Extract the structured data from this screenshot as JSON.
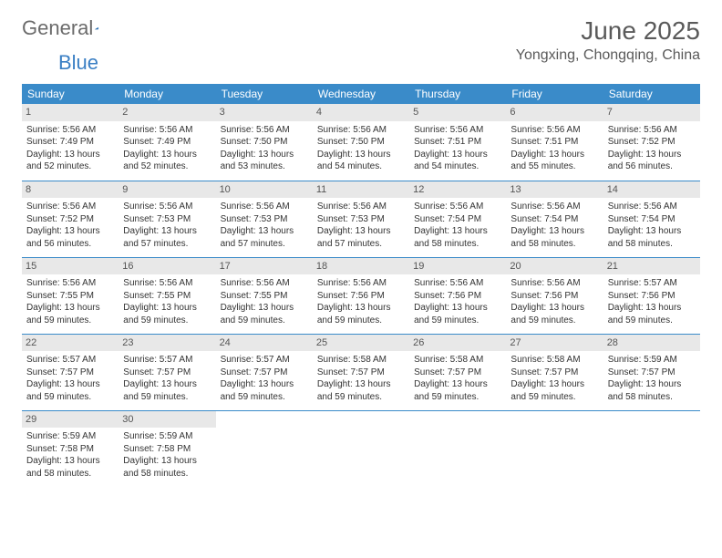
{
  "logo": {
    "text1": "General",
    "text2": "Blue"
  },
  "title": "June 2025",
  "location": "Yongxing, Chongqing, China",
  "colors": {
    "header_bg": "#3a8bc9",
    "header_text": "#ffffff",
    "daynum_bg": "#e8e8e8",
    "border": "#3a8bc9",
    "logo_gray": "#6b6b6b",
    "logo_blue": "#3a7fc4"
  },
  "weekdays": [
    "Sunday",
    "Monday",
    "Tuesday",
    "Wednesday",
    "Thursday",
    "Friday",
    "Saturday"
  ],
  "weeks": [
    [
      {
        "d": "1",
        "sr": "5:56 AM",
        "ss": "7:49 PM",
        "dl": "13 hours and 52 minutes."
      },
      {
        "d": "2",
        "sr": "5:56 AM",
        "ss": "7:49 PM",
        "dl": "13 hours and 52 minutes."
      },
      {
        "d": "3",
        "sr": "5:56 AM",
        "ss": "7:50 PM",
        "dl": "13 hours and 53 minutes."
      },
      {
        "d": "4",
        "sr": "5:56 AM",
        "ss": "7:50 PM",
        "dl": "13 hours and 54 minutes."
      },
      {
        "d": "5",
        "sr": "5:56 AM",
        "ss": "7:51 PM",
        "dl": "13 hours and 54 minutes."
      },
      {
        "d": "6",
        "sr": "5:56 AM",
        "ss": "7:51 PM",
        "dl": "13 hours and 55 minutes."
      },
      {
        "d": "7",
        "sr": "5:56 AM",
        "ss": "7:52 PM",
        "dl": "13 hours and 56 minutes."
      }
    ],
    [
      {
        "d": "8",
        "sr": "5:56 AM",
        "ss": "7:52 PM",
        "dl": "13 hours and 56 minutes."
      },
      {
        "d": "9",
        "sr": "5:56 AM",
        "ss": "7:53 PM",
        "dl": "13 hours and 57 minutes."
      },
      {
        "d": "10",
        "sr": "5:56 AM",
        "ss": "7:53 PM",
        "dl": "13 hours and 57 minutes."
      },
      {
        "d": "11",
        "sr": "5:56 AM",
        "ss": "7:53 PM",
        "dl": "13 hours and 57 minutes."
      },
      {
        "d": "12",
        "sr": "5:56 AM",
        "ss": "7:54 PM",
        "dl": "13 hours and 58 minutes."
      },
      {
        "d": "13",
        "sr": "5:56 AM",
        "ss": "7:54 PM",
        "dl": "13 hours and 58 minutes."
      },
      {
        "d": "14",
        "sr": "5:56 AM",
        "ss": "7:54 PM",
        "dl": "13 hours and 58 minutes."
      }
    ],
    [
      {
        "d": "15",
        "sr": "5:56 AM",
        "ss": "7:55 PM",
        "dl": "13 hours and 59 minutes."
      },
      {
        "d": "16",
        "sr": "5:56 AM",
        "ss": "7:55 PM",
        "dl": "13 hours and 59 minutes."
      },
      {
        "d": "17",
        "sr": "5:56 AM",
        "ss": "7:55 PM",
        "dl": "13 hours and 59 minutes."
      },
      {
        "d": "18",
        "sr": "5:56 AM",
        "ss": "7:56 PM",
        "dl": "13 hours and 59 minutes."
      },
      {
        "d": "19",
        "sr": "5:56 AM",
        "ss": "7:56 PM",
        "dl": "13 hours and 59 minutes."
      },
      {
        "d": "20",
        "sr": "5:56 AM",
        "ss": "7:56 PM",
        "dl": "13 hours and 59 minutes."
      },
      {
        "d": "21",
        "sr": "5:57 AM",
        "ss": "7:56 PM",
        "dl": "13 hours and 59 minutes."
      }
    ],
    [
      {
        "d": "22",
        "sr": "5:57 AM",
        "ss": "7:57 PM",
        "dl": "13 hours and 59 minutes."
      },
      {
        "d": "23",
        "sr": "5:57 AM",
        "ss": "7:57 PM",
        "dl": "13 hours and 59 minutes."
      },
      {
        "d": "24",
        "sr": "5:57 AM",
        "ss": "7:57 PM",
        "dl": "13 hours and 59 minutes."
      },
      {
        "d": "25",
        "sr": "5:58 AM",
        "ss": "7:57 PM",
        "dl": "13 hours and 59 minutes."
      },
      {
        "d": "26",
        "sr": "5:58 AM",
        "ss": "7:57 PM",
        "dl": "13 hours and 59 minutes."
      },
      {
        "d": "27",
        "sr": "5:58 AM",
        "ss": "7:57 PM",
        "dl": "13 hours and 59 minutes."
      },
      {
        "d": "28",
        "sr": "5:59 AM",
        "ss": "7:57 PM",
        "dl": "13 hours and 58 minutes."
      }
    ],
    [
      {
        "d": "29",
        "sr": "5:59 AM",
        "ss": "7:58 PM",
        "dl": "13 hours and 58 minutes."
      },
      {
        "d": "30",
        "sr": "5:59 AM",
        "ss": "7:58 PM",
        "dl": "13 hours and 58 minutes."
      },
      null,
      null,
      null,
      null,
      null
    ]
  ],
  "labels": {
    "sunrise": "Sunrise: ",
    "sunset": "Sunset: ",
    "daylight": "Daylight: "
  }
}
